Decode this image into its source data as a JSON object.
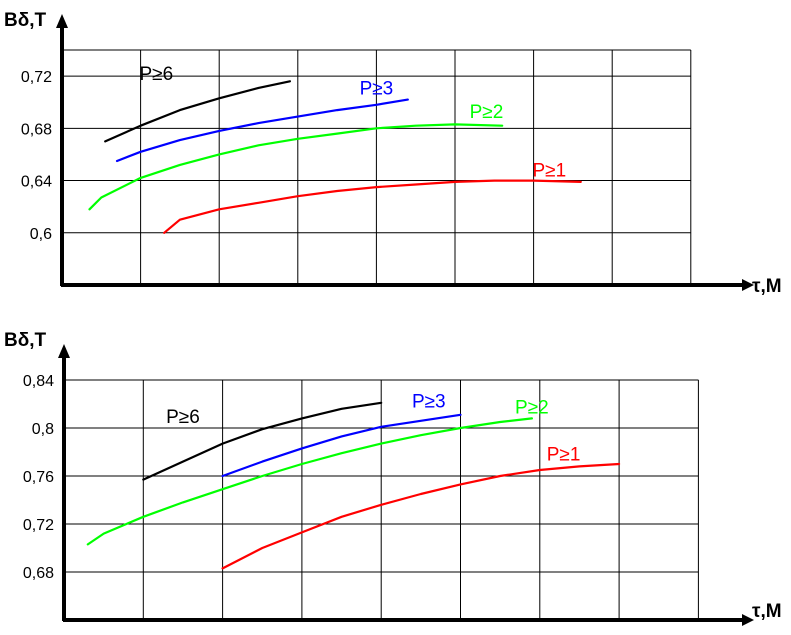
{
  "chart_data": [
    {
      "type": "line",
      "ylabel": "Bδ,T",
      "xlabel": "τ,M",
      "ylim": [
        0.56,
        0.74
      ],
      "ticks": [
        "0,72",
        "0,68",
        "0,64",
        "0,6"
      ],
      "tick_values": [
        0.72,
        0.68,
        0.64,
        0.6
      ],
      "grid": true,
      "series": [
        {
          "name": "P≥6",
          "color": "#000000",
          "label_anchor": [
            1.2,
            0.717
          ],
          "points": [
            [
              0.55,
              0.67
            ],
            [
              1.0,
              0.682
            ],
            [
              1.5,
              0.694
            ],
            [
              2.0,
              0.703
            ],
            [
              2.5,
              0.711
            ],
            [
              2.9,
              0.716
            ]
          ]
        },
        {
          "name": "P≥3",
          "color": "#0000ff",
          "label_anchor": [
            4.0,
            0.706
          ],
          "points": [
            [
              0.7,
              0.655
            ],
            [
              1.0,
              0.662
            ],
            [
              1.5,
              0.671
            ],
            [
              2.0,
              0.678
            ],
            [
              2.5,
              0.684
            ],
            [
              3.0,
              0.689
            ],
            [
              3.5,
              0.694
            ],
            [
              4.0,
              0.698
            ],
            [
              4.4,
              0.702
            ]
          ]
        },
        {
          "name": "P≥2",
          "color": "#00ff00",
          "label_anchor": [
            5.4,
            0.688
          ],
          "points": [
            [
              0.35,
              0.618
            ],
            [
              0.5,
              0.627
            ],
            [
              1.0,
              0.642
            ],
            [
              1.5,
              0.652
            ],
            [
              2.0,
              0.66
            ],
            [
              2.5,
              0.667
            ],
            [
              3.0,
              0.672
            ],
            [
              3.5,
              0.676
            ],
            [
              4.0,
              0.68
            ],
            [
              4.5,
              0.682
            ],
            [
              5.0,
              0.683
            ],
            [
              5.6,
              0.682
            ]
          ]
        },
        {
          "name": "P≥1",
          "color": "#ff0000",
          "label_anchor": [
            6.2,
            0.643
          ],
          "points": [
            [
              1.3,
              0.6
            ],
            [
              1.5,
              0.61
            ],
            [
              2.0,
              0.618
            ],
            [
              2.5,
              0.623
            ],
            [
              3.0,
              0.628
            ],
            [
              3.5,
              0.632
            ],
            [
              4.0,
              0.635
            ],
            [
              4.5,
              0.637
            ],
            [
              5.0,
              0.639
            ],
            [
              5.5,
              0.64
            ],
            [
              6.0,
              0.64
            ],
            [
              6.6,
              0.639
            ]
          ]
        }
      ]
    },
    {
      "type": "line",
      "ylabel": "Bδ,T",
      "xlabel": "τ,M",
      "ylim": [
        0.64,
        0.84
      ],
      "ticks": [
        "0,84",
        "0,8",
        "0,76",
        "0,72",
        "0,68"
      ],
      "tick_values": [
        0.84,
        0.8,
        0.76,
        0.72,
        0.68
      ],
      "grid": true,
      "series": [
        {
          "name": "P≥6",
          "color": "#000000",
          "label_anchor": [
            1.5,
            0.804
          ],
          "points": [
            [
              1.0,
              0.757
            ],
            [
              1.5,
              0.772
            ],
            [
              2.0,
              0.787
            ],
            [
              2.5,
              0.799
            ],
            [
              3.0,
              0.808
            ],
            [
              3.5,
              0.816
            ],
            [
              4.0,
              0.821
            ]
          ]
        },
        {
          "name": "P≥3",
          "color": "#0000ff",
          "label_anchor": [
            4.6,
            0.817
          ],
          "points": [
            [
              2.0,
              0.76
            ],
            [
              2.5,
              0.772
            ],
            [
              3.0,
              0.783
            ],
            [
              3.5,
              0.793
            ],
            [
              4.0,
              0.801
            ],
            [
              4.5,
              0.806
            ],
            [
              5.0,
              0.811
            ]
          ]
        },
        {
          "name": "P≥2",
          "color": "#00ff00",
          "label_anchor": [
            5.9,
            0.812
          ],
          "points": [
            [
              0.3,
              0.703
            ],
            [
              0.5,
              0.712
            ],
            [
              1.0,
              0.726
            ],
            [
              1.5,
              0.738
            ],
            [
              2.0,
              0.749
            ],
            [
              2.5,
              0.76
            ],
            [
              3.0,
              0.77
            ],
            [
              3.5,
              0.779
            ],
            [
              4.0,
              0.787
            ],
            [
              4.5,
              0.794
            ],
            [
              5.0,
              0.8
            ],
            [
              5.5,
              0.805
            ],
            [
              5.9,
              0.808
            ]
          ]
        },
        {
          "name": "P≥1",
          "color": "#ff0000",
          "label_anchor": [
            6.3,
            0.773
          ],
          "points": [
            [
              2.0,
              0.683
            ],
            [
              2.5,
              0.7
            ],
            [
              3.0,
              0.713
            ],
            [
              3.5,
              0.726
            ],
            [
              4.0,
              0.736
            ],
            [
              4.5,
              0.745
            ],
            [
              5.0,
              0.753
            ],
            [
              5.5,
              0.76
            ],
            [
              6.0,
              0.765
            ],
            [
              6.5,
              0.768
            ],
            [
              7.0,
              0.77
            ]
          ]
        }
      ]
    }
  ]
}
